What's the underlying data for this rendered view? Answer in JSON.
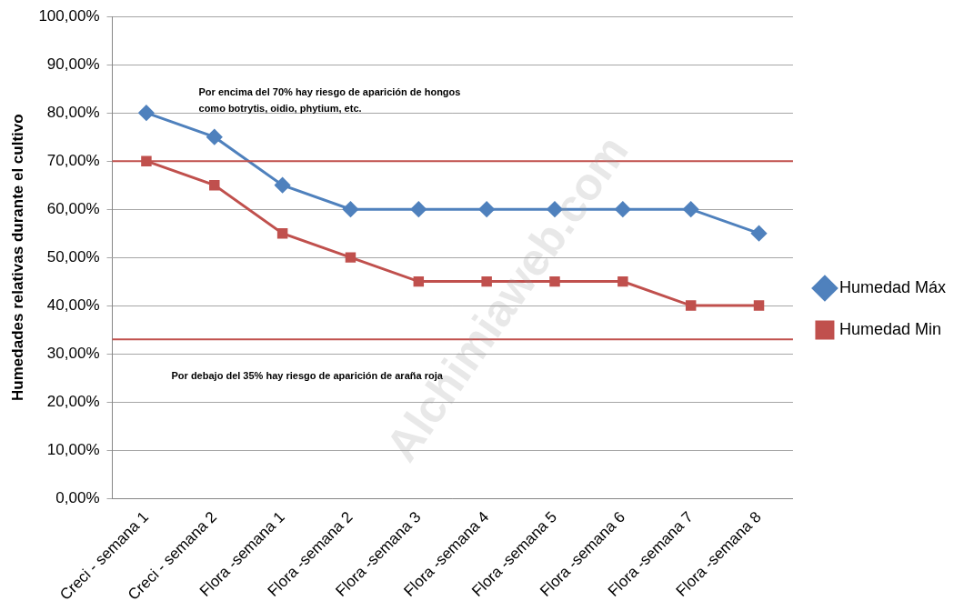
{
  "chart_data": {
    "type": "line",
    "categories": [
      "Creci - semana 1",
      "Creci - semana 2",
      "Flora -semana 1",
      "Flora -semana 2",
      "Flora -semana 3",
      "Flora -semana 4",
      "Flora -semana 5",
      "Flora -semana 6",
      "Flora -semana 7",
      "Flora -semana 8"
    ],
    "series": [
      {
        "name": "Humedad Máx",
        "color": "#4f81bd",
        "marker": "diamond",
        "line_style": "solid",
        "values": [
          80,
          75,
          65,
          60,
          60,
          60,
          60,
          60,
          60,
          55
        ]
      },
      {
        "name": "Humedad Min",
        "color": "#c0504d",
        "marker": "square",
        "line_style": "solid",
        "values": [
          70,
          65,
          55,
          50,
          45,
          45,
          45,
          45,
          40,
          40
        ]
      }
    ],
    "y_label": "Humedades relativas durante el cultivo",
    "ylim": [
      0,
      100
    ],
    "yticks": [
      {
        "value": 0,
        "label": "0,00%"
      },
      {
        "value": 10,
        "label": "10,00%"
      },
      {
        "value": 20,
        "label": "20,00%"
      },
      {
        "value": 30,
        "label": "30,00%"
      },
      {
        "value": 40,
        "label": "40,00%"
      },
      {
        "value": 50,
        "label": "50,00%"
      },
      {
        "value": 60,
        "label": "60,00%"
      },
      {
        "value": 70,
        "label": "70,00%"
      },
      {
        "value": 80,
        "label": "80,00%"
      },
      {
        "value": 90,
        "label": "90,00%"
      },
      {
        "value": 100,
        "label": "100,00%"
      }
    ],
    "grid": true,
    "legend": "right",
    "reference_lines": [
      {
        "value": 70,
        "color": "#c0504d",
        "side": "above",
        "text": [
          "Por encima del 70% hay riesgo de aparición de hongos",
          "como botrytis, oidio, phytium, etc."
        ]
      },
      {
        "value": 33,
        "color": "#c0504d",
        "side": "below",
        "text": [
          "Por debajo del 35% hay riesgo de aparición de araña roja"
        ]
      }
    ],
    "watermark": "Alchimiaweb.com"
  }
}
